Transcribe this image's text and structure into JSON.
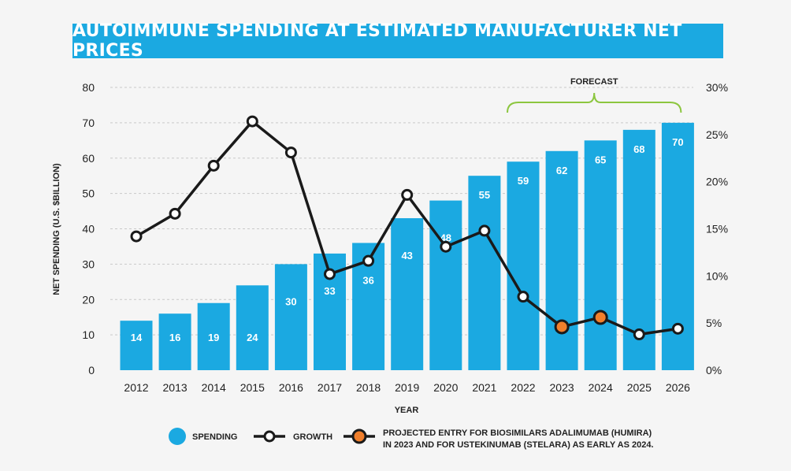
{
  "chart_data": {
    "type": "bar+line",
    "title": "AUTOIMMUNE SPENDING AT ESTIMATED MANUFACTURER NET PRICES",
    "xlabel": "YEAR",
    "ylabel": "NET SPENDING (U.S. $BILLION)",
    "categories": [
      "2012",
      "2013",
      "2014",
      "2015",
      "2016",
      "2017",
      "2018",
      "2019",
      "2020",
      "2021",
      "2022",
      "2023",
      "2024",
      "2025",
      "2026"
    ],
    "series": [
      {
        "name": "SPENDING",
        "kind": "bar",
        "axis": "left",
        "values": [
          14,
          16,
          19,
          24,
          30,
          33,
          36,
          43,
          48,
          55,
          59,
          62,
          65,
          68,
          70
        ],
        "color": "#1ba9e1"
      },
      {
        "name": "GROWTH",
        "kind": "line",
        "axis": "right",
        "values": [
          14.2,
          16.6,
          21.7,
          26.4,
          23.1,
          10.2,
          11.6,
          18.6,
          13.1,
          14.8,
          7.8,
          4.6,
          5.6,
          3.8,
          4.4
        ],
        "color": "#1a1a1a"
      }
    ],
    "highlighted_points": [
      "2023",
      "2024"
    ],
    "highlight_color": "#f07f2c",
    "left_axis": {
      "ylim": [
        0,
        80
      ],
      "ticks": [
        "0",
        "10",
        "20",
        "30",
        "40",
        "50",
        "60",
        "70",
        "80"
      ]
    },
    "right_axis": {
      "ylim": [
        0,
        30
      ],
      "ticks": [
        "0%",
        "5%",
        "10%",
        "15%",
        "20%",
        "25%",
        "30%"
      ]
    },
    "forecast_label": "FORECAST",
    "forecast_range": [
      "2022",
      "2026"
    ],
    "forecast_color": "#8cc63f",
    "legend": {
      "spending": "SPENDING",
      "growth": "GROWTH",
      "projected_line1": "PROJECTED ENTRY FOR BIOSIMILARS ADALIMUMAB (HUMIRA)",
      "projected_line2": "IN 2023 AND FOR USTEKINUMAB (STELARA) AS EARLY AS 2024."
    },
    "grid": true
  }
}
